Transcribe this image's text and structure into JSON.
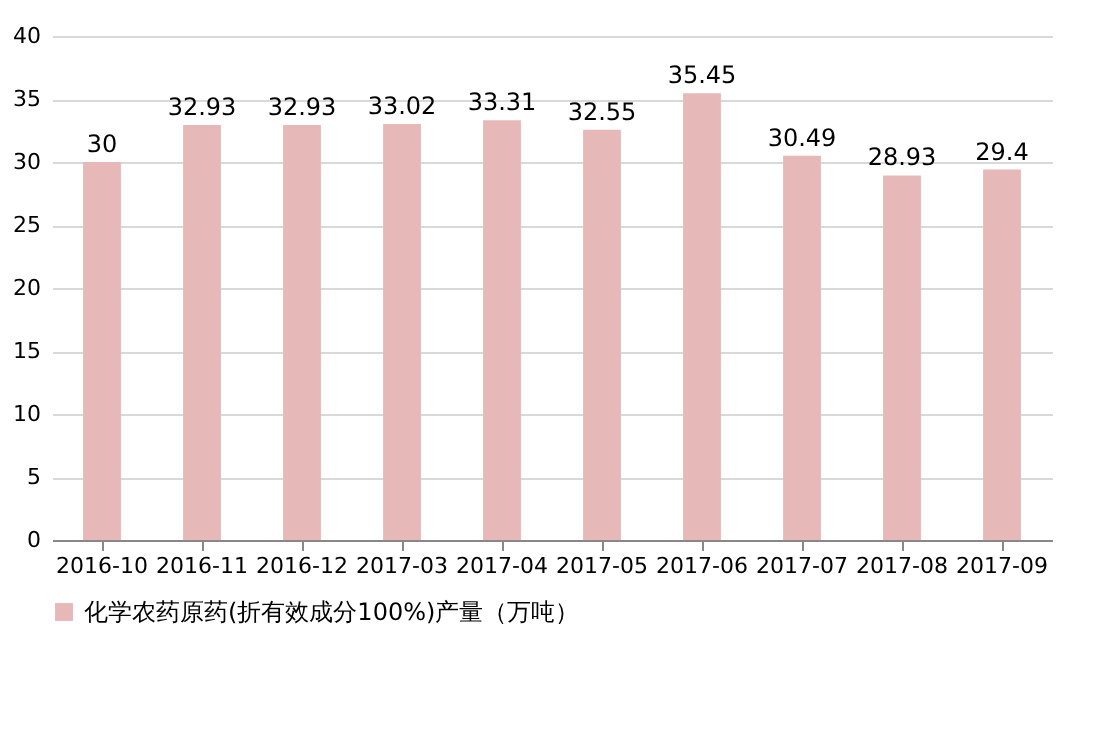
{
  "chart_data": {
    "type": "bar",
    "categories": [
      "2016-10",
      "2016-11",
      "2016-12",
      "2017-03",
      "2017-04",
      "2017-05",
      "2017-06",
      "2017-07",
      "2017-08",
      "2017-09"
    ],
    "series": [
      {
        "name": "化学农药原药(折有效成分100%)产量（万吨）",
        "color": "#e6b9b8",
        "values": [
          30,
          32.93,
          32.93,
          33.02,
          33.31,
          32.55,
          35.45,
          30.49,
          28.93,
          29.4
        ]
      }
    ],
    "ylim": [
      0,
      40
    ],
    "yticks": [
      0,
      5,
      10,
      15,
      20,
      25,
      30,
      35,
      40
    ],
    "grid": "y",
    "legend": "bottom left",
    "data_labels": true
  }
}
